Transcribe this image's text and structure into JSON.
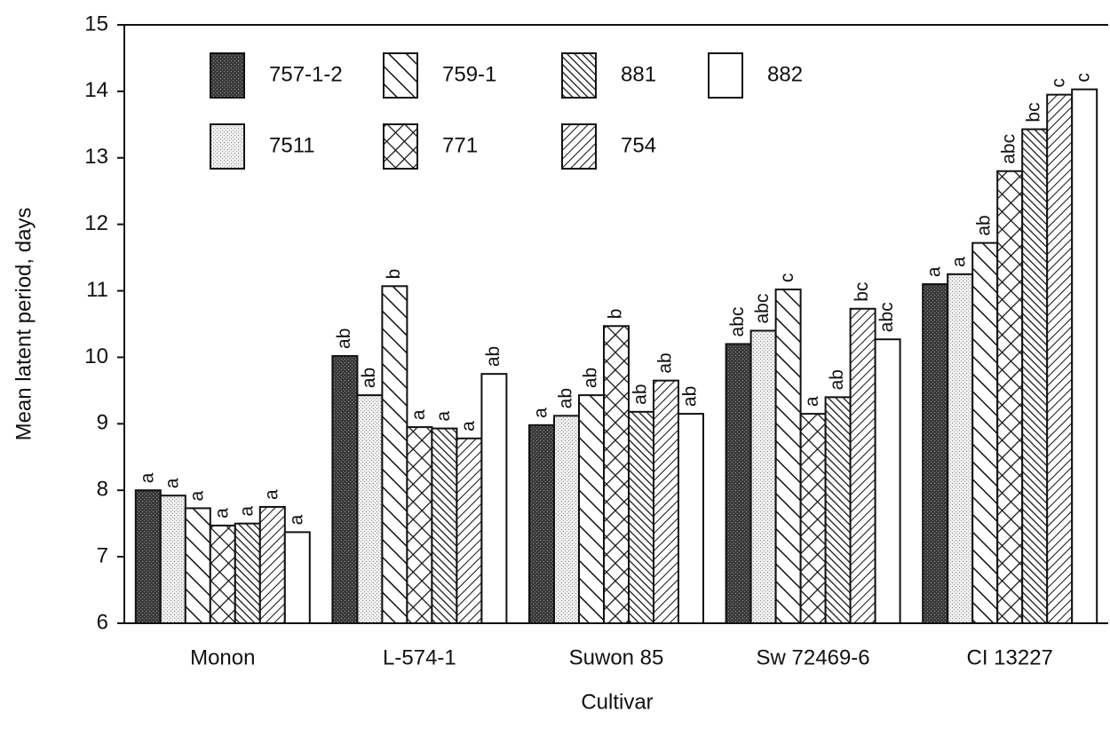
{
  "chart_data": {
    "type": "bar",
    "y_label": "Mean latent period, days",
    "x_label": "Cultivar",
    "categories": [
      "Monon",
      "L-574-1",
      "Suwon 85",
      "Sw 72469-6",
      "CI 13227"
    ],
    "ylim": [
      6,
      15
    ],
    "yticks": [
      6,
      7,
      8,
      9,
      10,
      11,
      12,
      13,
      14,
      15
    ],
    "series": [
      {
        "name": "757-1-2",
        "values": [
          8.0,
          10.02,
          8.98,
          10.2,
          11.1
        ],
        "value_labels": [
          "a",
          "ab",
          "a",
          "abc",
          "a"
        ]
      },
      {
        "name": "7511",
        "values": [
          7.92,
          9.43,
          9.12,
          10.4,
          11.25
        ],
        "value_labels": [
          "a",
          "ab",
          "ab",
          "abc",
          "a"
        ]
      },
      {
        "name": "759-1",
        "values": [
          7.73,
          11.07,
          9.43,
          11.02,
          11.72
        ],
        "value_labels": [
          "a",
          "b",
          "ab",
          "c",
          "ab"
        ]
      },
      {
        "name": "771",
        "values": [
          7.47,
          8.95,
          10.47,
          9.15,
          12.8
        ],
        "value_labels": [
          "a",
          "a",
          "b",
          "a",
          "abc"
        ]
      },
      {
        "name": "881",
        "values": [
          7.5,
          8.93,
          9.18,
          9.4,
          13.43
        ],
        "value_labels": [
          "a",
          "a",
          "ab",
          "ab",
          "bc"
        ]
      },
      {
        "name": "754",
        "values": [
          7.75,
          8.78,
          9.65,
          10.73,
          13.95
        ],
        "value_labels": [
          "a",
          "a",
          "ab",
          "bc",
          "c"
        ]
      },
      {
        "name": "882",
        "values": [
          7.37,
          9.75,
          9.15,
          10.27,
          14.03
        ],
        "value_labels": [
          "a",
          "ab",
          "ab",
          "abc",
          "c"
        ]
      }
    ]
  }
}
